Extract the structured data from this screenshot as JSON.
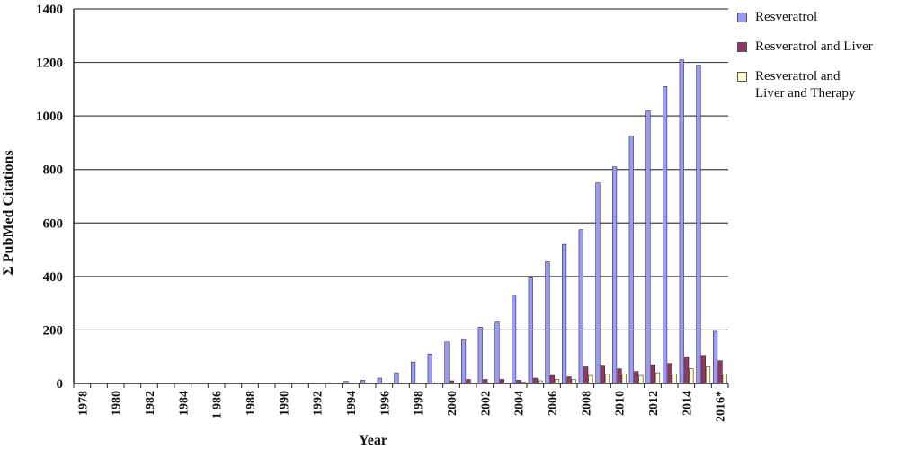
{
  "chart_data": {
    "type": "bar",
    "xlabel": "Year",
    "ylabel": "Σ PubMed Citations",
    "ylim": [
      0,
      1400
    ],
    "yticks": [
      0,
      200,
      400,
      600,
      800,
      1000,
      1200,
      1400
    ],
    "grid": true,
    "legend_position": "right",
    "categories": [
      "1978",
      "1979",
      "1980",
      "1981",
      "1982",
      "1983",
      "1984",
      "1985",
      "1986",
      "1987",
      "1988",
      "1989",
      "1990",
      "1991",
      "1992",
      "1993",
      "1994",
      "1995",
      "1996",
      "1997",
      "1998",
      "1999",
      "2000",
      "2001",
      "2002",
      "2003",
      "2004",
      "2005",
      "2006",
      "2007",
      "2008",
      "2009",
      "2010",
      "2011",
      "2012",
      "2013",
      "2014",
      "2015",
      "2016*"
    ],
    "tick_labels": [
      "1978",
      "1980",
      "1982",
      "1984",
      "1 986",
      "1988",
      "1990",
      "1992",
      "1994",
      "1996",
      "1998",
      "2000",
      "2002",
      "2004",
      "2006",
      "2008",
      "2010",
      "2012",
      "2014",
      "2016*"
    ],
    "tick_indices": [
      0,
      2,
      4,
      6,
      8,
      10,
      12,
      14,
      16,
      18,
      20,
      22,
      24,
      26,
      28,
      30,
      32,
      34,
      36,
      38
    ],
    "series": [
      {
        "name": "Resveratrol",
        "color": "#9999ff",
        "values": [
          0,
          0,
          0,
          0,
          0,
          0,
          0,
          0,
          0,
          0,
          0,
          0,
          2,
          1,
          2,
          2,
          8,
          12,
          20,
          40,
          80,
          110,
          155,
          165,
          210,
          230,
          330,
          395,
          455,
          520,
          575,
          750,
          810,
          925,
          1020,
          1110,
          1210,
          1190,
          195
        ]
      },
      {
        "name": "Resveratrol and Liver",
        "color": "#993366",
        "values": [
          0,
          0,
          0,
          0,
          0,
          0,
          0,
          0,
          0,
          0,
          0,
          0,
          0,
          0,
          0,
          0,
          0,
          0,
          0,
          0,
          0,
          2,
          10,
          15,
          15,
          15,
          12,
          20,
          30,
          25,
          62,
          65,
          55,
          45,
          70,
          75,
          100,
          105,
          85
        ]
      },
      {
        "name": "Resveratrol and\nLiver and Therapy",
        "color": "#ffffcc",
        "values": [
          0,
          0,
          0,
          0,
          0,
          0,
          0,
          0,
          0,
          0,
          0,
          0,
          0,
          0,
          0,
          0,
          0,
          0,
          0,
          0,
          0,
          0,
          0,
          2,
          2,
          2,
          5,
          10,
          15,
          15,
          30,
          35,
          35,
          30,
          40,
          35,
          55,
          62,
          35
        ]
      }
    ]
  }
}
